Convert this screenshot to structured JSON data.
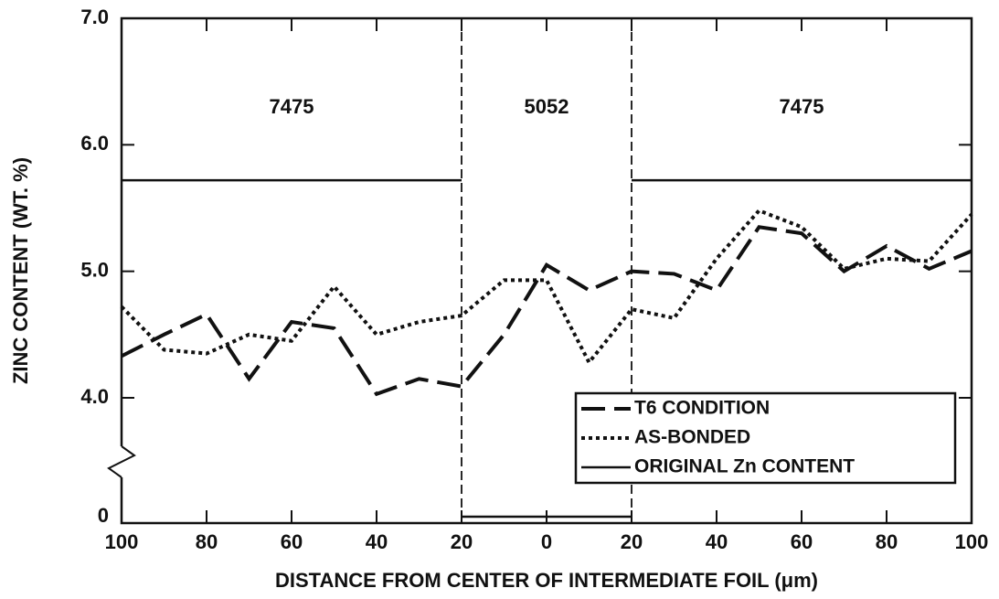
{
  "chart_data": {
    "type": "line",
    "xlabel": "DISTANCE FROM CENTER OF INTERMEDIATE FOIL (μm)",
    "ylabel": "ZINC CONTENT (WT. %)",
    "x": [
      -100,
      -90,
      -80,
      -70,
      -60,
      -50,
      -40,
      -30,
      -20,
      -10,
      0,
      10,
      20,
      30,
      40,
      50,
      60,
      70,
      80,
      90,
      100
    ],
    "series": [
      {
        "name": "T6 CONDITION",
        "color": "#111",
        "dash": "dashed",
        "values": [
          4.33,
          4.5,
          4.66,
          4.15,
          4.6,
          4.55,
          4.03,
          4.15,
          4.09,
          4.5,
          5.05,
          4.85,
          5.0,
          4.98,
          4.85,
          5.35,
          5.3,
          5.0,
          5.2,
          5.02,
          5.16
        ]
      },
      {
        "name": "AS-BONDED",
        "color": "#111",
        "dash": "dotted",
        "values": [
          4.72,
          4.38,
          4.35,
          4.5,
          4.45,
          4.88,
          4.5,
          4.6,
          4.65,
          4.93,
          4.93,
          4.28,
          4.7,
          4.63,
          5.1,
          5.48,
          5.35,
          5.02,
          5.1,
          5.08,
          5.45
        ]
      },
      {
        "name": "ORIGINAL Zn CONTENT",
        "color": "#111",
        "dash": "solid",
        "x": [
          -100,
          -20,
          -20,
          -20,
          20,
          20,
          20,
          100
        ],
        "values": [
          5.72,
          5.72,
          null,
          0,
          0,
          null,
          5.72,
          5.72
        ]
      }
    ],
    "boundaries": [
      -20,
      20
    ],
    "annotations": [
      {
        "text": "7475",
        "x": -60
      },
      {
        "text": "5052",
        "x": 0
      },
      {
        "text": "7475",
        "x": 60
      }
    ],
    "xlim": [
      -100,
      100
    ],
    "xticks": [
      {
        "value": -100,
        "label": "100"
      },
      {
        "value": -80,
        "label": "80"
      },
      {
        "value": -60,
        "label": "60"
      },
      {
        "value": -40,
        "label": "40"
      },
      {
        "value": -20,
        "label": "20"
      },
      0,
      20,
      40,
      60,
      80,
      100
    ],
    "ylim": [
      0,
      7
    ],
    "yticks": [
      0,
      {
        "value": 4,
        "label": "4.0"
      },
      {
        "value": 5,
        "label": "5.0"
      },
      {
        "value": 6,
        "label": "6.0"
      },
      {
        "value": 7,
        "label": "7.0"
      }
    ],
    "axis_break": true,
    "legend": "lower right"
  }
}
